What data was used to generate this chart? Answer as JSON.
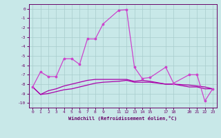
{
  "xlabel": "Windchill (Refroidissement éolien,°C)",
  "bg_color": "#c8e8e8",
  "grid_color": "#a8cccc",
  "line_color1": "#aa00aa",
  "line_color2": "#cc44cc",
  "figsize": [
    3.2,
    2.0
  ],
  "dpi": 100,
  "xlim": [
    -0.5,
    23.5
  ],
  "ylim": [
    -10.5,
    0.5
  ],
  "yticks": [
    0,
    -1,
    -2,
    -3,
    -4,
    -5,
    -6,
    -7,
    -8,
    -9,
    -10
  ],
  "xticks": [
    0,
    1,
    2,
    3,
    4,
    5,
    6,
    7,
    8,
    9,
    11,
    12,
    13,
    14,
    15,
    17,
    18,
    20,
    21,
    22,
    23
  ],
  "line1_x": [
    0,
    1,
    2,
    3,
    4,
    5,
    6,
    7,
    8,
    9,
    11,
    12,
    13,
    14,
    15,
    17,
    18,
    20,
    21,
    22,
    23
  ],
  "line1_y": [
    -8.3,
    -6.7,
    -7.2,
    -7.2,
    -5.3,
    -5.3,
    -5.9,
    -3.2,
    -3.2,
    -1.6,
    -0.15,
    -0.1,
    -6.2,
    -7.4,
    -7.3,
    -6.2,
    -7.9,
    -7.0,
    -7.0,
    -9.8,
    -8.5
  ],
  "line2_x": [
    0,
    1,
    2,
    3,
    4,
    5,
    6,
    7,
    8,
    9,
    11,
    12,
    13,
    14,
    15,
    17,
    18,
    20,
    21,
    22,
    23
  ],
  "line2_y": [
    -8.3,
    -9.1,
    -8.7,
    -8.5,
    -8.2,
    -8.0,
    -7.8,
    -7.6,
    -7.5,
    -7.5,
    -7.5,
    -7.5,
    -7.7,
    -7.6,
    -7.7,
    -8.0,
    -8.0,
    -8.1,
    -8.2,
    -8.3,
    -8.5
  ],
  "line3_x": [
    0,
    1,
    2,
    3,
    4,
    5,
    6,
    7,
    8,
    9,
    11,
    12,
    13,
    14,
    15,
    17,
    18,
    20,
    21,
    22,
    23
  ],
  "line3_y": [
    -8.3,
    -9.1,
    -9.0,
    -8.8,
    -8.6,
    -8.5,
    -8.3,
    -8.1,
    -7.9,
    -7.8,
    -7.7,
    -7.6,
    -7.8,
    -7.8,
    -7.8,
    -8.0,
    -8.0,
    -8.3,
    -8.3,
    -8.5,
    -8.5
  ]
}
